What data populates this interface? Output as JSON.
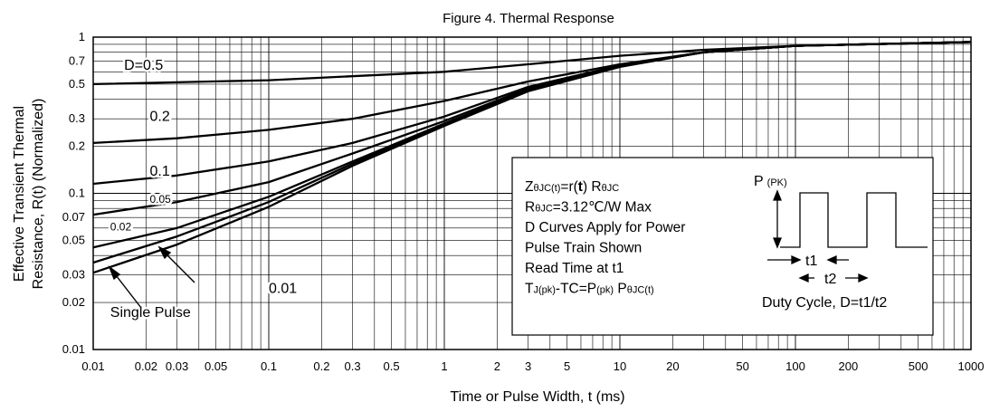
{
  "chart_data": {
    "type": "line",
    "title": "Figure 4. Thermal Response",
    "xlabel": "Time or Pulse Width, t (ms)",
    "ylabel_lines": [
      "Effective Transient Thermal",
      "Resistance, R(t)  (Normalized)"
    ],
    "xscale": "log",
    "yscale": "log",
    "xlim": [
      0.01,
      1000
    ],
    "ylim": [
      0.01,
      1
    ],
    "grid": true,
    "x_ticks": [
      {
        "v": 0.01,
        "label": "0.01"
      },
      {
        "v": 0.02,
        "label": "0.02"
      },
      {
        "v": 0.03,
        "label": "0.03"
      },
      {
        "v": 0.05,
        "label": "0.05"
      },
      {
        "v": 0.1,
        "label": "0.1"
      },
      {
        "v": 0.2,
        "label": "0.2"
      },
      {
        "v": 0.3,
        "label": "0.3"
      },
      {
        "v": 0.5,
        "label": "0.5"
      },
      {
        "v": 1,
        "label": "1"
      },
      {
        "v": 2,
        "label": "2"
      },
      {
        "v": 3,
        "label": "3"
      },
      {
        "v": 5,
        "label": "5"
      },
      {
        "v": 10,
        "label": "10"
      },
      {
        "v": 20,
        "label": "20"
      },
      {
        "v": 50,
        "label": "50"
      },
      {
        "v": 100,
        "label": "100"
      },
      {
        "v": 200,
        "label": "200"
      },
      {
        "v": 500,
        "label": "500"
      },
      {
        "v": 1000,
        "label": "1000"
      }
    ],
    "y_ticks": [
      {
        "v": 0.01,
        "label": "0.01"
      },
      {
        "v": 0.02,
        "label": "0.02"
      },
      {
        "v": 0.03,
        "label": "0.03"
      },
      {
        "v": 0.05,
        "label": "0.05"
      },
      {
        "v": 0.07,
        "label": "0.07"
      },
      {
        "v": 0.1,
        "label": "0.1"
      },
      {
        "v": 0.2,
        "label": "0.2"
      },
      {
        "v": 0.3,
        "label": "0.3"
      },
      {
        "v": 0.5,
        "label": "0.5"
      },
      {
        "v": 0.7,
        "label": "0.7"
      },
      {
        "v": 1,
        "label": "1"
      }
    ],
    "series": [
      {
        "name": "D=0.5",
        "x": [
          0.01,
          0.1,
          1,
          3,
          10,
          30,
          100,
          1000
        ],
        "y": [
          0.5,
          0.53,
          0.6,
          0.67,
          0.76,
          0.83,
          0.88,
          0.93
        ]
      },
      {
        "name": "0.2",
        "x": [
          0.01,
          0.03,
          0.1,
          0.3,
          1,
          3,
          10,
          30,
          100,
          1000
        ],
        "y": [
          0.21,
          0.225,
          0.255,
          0.3,
          0.39,
          0.52,
          0.67,
          0.8,
          0.88,
          0.93
        ]
      },
      {
        "name": "0.1",
        "x": [
          0.01,
          0.03,
          0.1,
          0.3,
          1,
          3,
          10,
          30,
          100,
          1000
        ],
        "y": [
          0.115,
          0.13,
          0.16,
          0.21,
          0.31,
          0.48,
          0.66,
          0.8,
          0.88,
          0.93
        ]
      },
      {
        "name": "0.05",
        "x": [
          0.01,
          0.03,
          0.1,
          0.3,
          1,
          3,
          10,
          30,
          100,
          1000
        ],
        "y": [
          0.073,
          0.088,
          0.118,
          0.18,
          0.29,
          0.47,
          0.66,
          0.8,
          0.88,
          0.93
        ]
      },
      {
        "name": "0.02",
        "x": [
          0.01,
          0.03,
          0.1,
          0.3,
          1,
          3,
          10,
          30,
          100,
          1000
        ],
        "y": [
          0.045,
          0.06,
          0.095,
          0.16,
          0.28,
          0.46,
          0.65,
          0.8,
          0.88,
          0.93
        ]
      },
      {
        "name": "0.01",
        "x": [
          0.01,
          0.03,
          0.1,
          0.3,
          1,
          3,
          10,
          30,
          100,
          1000
        ],
        "y": [
          0.036,
          0.053,
          0.088,
          0.155,
          0.275,
          0.455,
          0.65,
          0.8,
          0.88,
          0.93
        ]
      },
      {
        "name": "Single Pulse",
        "x": [
          0.01,
          0.03,
          0.1,
          0.3,
          1,
          3,
          10,
          30,
          100,
          1000
        ],
        "y": [
          0.031,
          0.047,
          0.082,
          0.15,
          0.27,
          0.45,
          0.645,
          0.8,
          0.88,
          0.93
        ]
      }
    ],
    "curve_labels": [
      {
        "text": "D=0.5",
        "x": 0.015,
        "y": 0.62,
        "size": 16
      },
      {
        "text": "0.2",
        "x": 0.021,
        "y": 0.29,
        "size": 16
      },
      {
        "text": "0.1",
        "x": 0.021,
        "y": 0.13,
        "size": 16
      },
      {
        "text": "0.05",
        "x": 0.021,
        "y": 0.087,
        "size": 12
      },
      {
        "text": "0.02",
        "x": 0.0125,
        "y": 0.058,
        "size": 12
      },
      {
        "text": "0.01",
        "x": 0.1,
        "y": 0.023,
        "size": 16
      },
      {
        "text": "Single Pulse",
        "x": 0.0125,
        "y": 0.0162,
        "size": 16
      }
    ],
    "annotation": {
      "lines": [
        {
          "parts": [
            {
              "t": "Z"
            },
            {
              "t": "θJC(t)",
              "small": true
            },
            {
              "t": "=r("
            },
            {
              "t": "t",
              "bold": true
            },
            {
              "t": ") R"
            },
            {
              "t": "θJC",
              "small": true
            }
          ]
        },
        {
          "parts": [
            {
              "t": "R"
            },
            {
              "t": "θJC",
              "small": true
            },
            {
              "t": "=3.12℃/W Max"
            }
          ]
        },
        {
          "parts": [
            {
              "t": "D Curves Apply for Power"
            }
          ]
        },
        {
          "parts": [
            {
              "t": "Pulse Train Shown"
            }
          ]
        },
        {
          "parts": [
            {
              "t": "Read Time at t1"
            }
          ]
        },
        {
          "parts": [
            {
              "t": "T"
            },
            {
              "t": "J(pk)",
              "small": true
            },
            {
              "t": "-TC=P"
            },
            {
              "t": "(pk)",
              "small": true
            },
            {
              "t": " P"
            },
            {
              "t": "θJC(t)",
              "small": true
            }
          ]
        }
      ],
      "pulse_label_main": "P",
      "pulse_label_sub": "(PK)",
      "t1_label": "t1",
      "t2_label": "t2",
      "duty_cycle": "Duty Cycle, D=t1/t2"
    }
  }
}
